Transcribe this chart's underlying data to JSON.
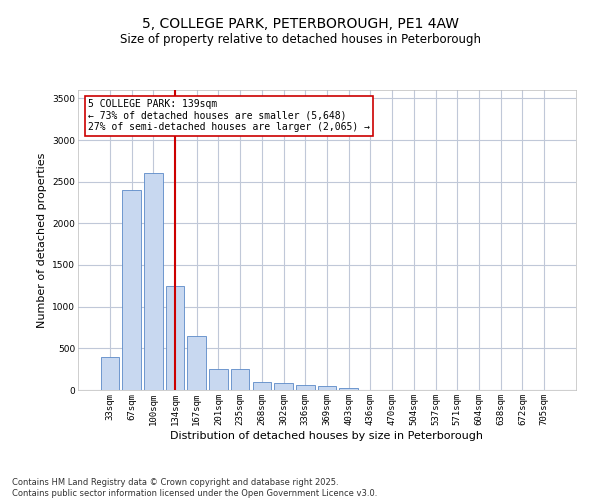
{
  "title1": "5, COLLEGE PARK, PETERBOROUGH, PE1 4AW",
  "title2": "Size of property relative to detached houses in Peterborough",
  "xlabel": "Distribution of detached houses by size in Peterborough",
  "ylabel": "Number of detached properties",
  "categories": [
    "33sqm",
    "67sqm",
    "100sqm",
    "134sqm",
    "167sqm",
    "201sqm",
    "235sqm",
    "268sqm",
    "302sqm",
    "336sqm",
    "369sqm",
    "403sqm",
    "436sqm",
    "470sqm",
    "504sqm",
    "537sqm",
    "571sqm",
    "604sqm",
    "638sqm",
    "672sqm",
    "705sqm"
  ],
  "values": [
    400,
    2400,
    2600,
    1250,
    650,
    250,
    250,
    100,
    80,
    60,
    50,
    30,
    5,
    0,
    0,
    0,
    0,
    0,
    0,
    0,
    0
  ],
  "bar_color": "#c8d8f0",
  "bar_edge_color": "#5b8ac8",
  "red_line_index": 3,
  "red_line_color": "#cc0000",
  "annotation_title": "5 COLLEGE PARK: 139sqm",
  "annotation_line1": "← 73% of detached houses are smaller (5,648)",
  "annotation_line2": "27% of semi-detached houses are larger (2,065) →",
  "annotation_box_color": "#ffffff",
  "annotation_box_edge": "#cc0000",
  "ylim": [
    0,
    3600
  ],
  "yticks": [
    0,
    500,
    1000,
    1500,
    2000,
    2500,
    3000,
    3500
  ],
  "footer1": "Contains HM Land Registry data © Crown copyright and database right 2025.",
  "footer2": "Contains public sector information licensed under the Open Government Licence v3.0.",
  "bg_color": "#ffffff",
  "grid_color": "#c0c8d8",
  "title1_fontsize": 10,
  "title2_fontsize": 8.5,
  "tick_fontsize": 6.5,
  "label_fontsize": 8,
  "footer_fontsize": 6
}
